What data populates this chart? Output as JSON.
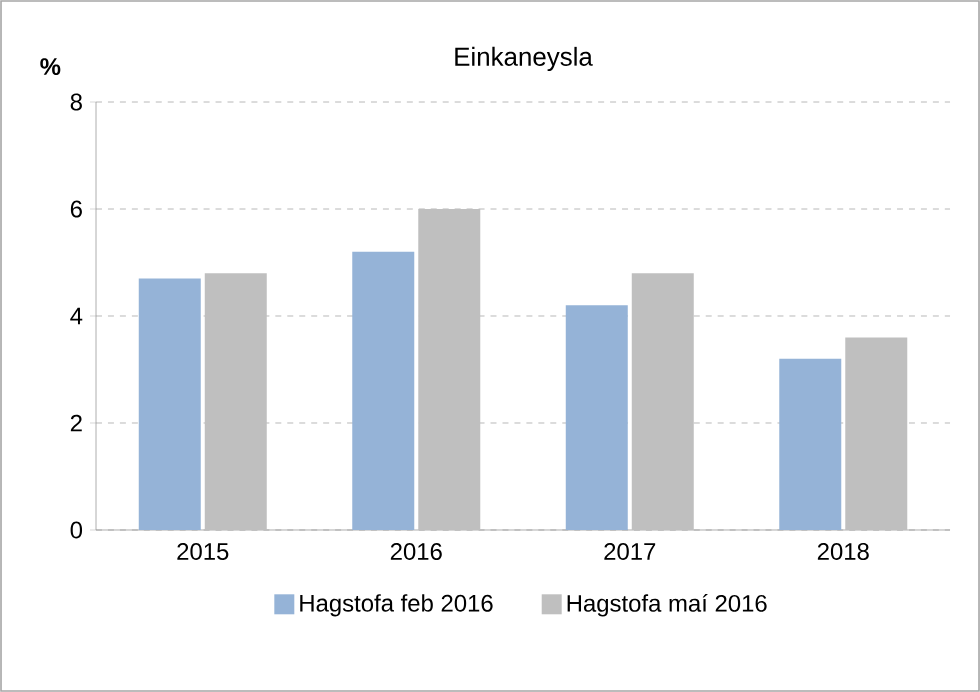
{
  "chart_data": {
    "type": "bar",
    "title": "Einkaneysla",
    "ylabel": "%",
    "categories": [
      "2015",
      "2016",
      "2017",
      "2018"
    ],
    "series": [
      {
        "name": "Hagstofa feb 2016",
        "color": "#95b3d7",
        "values": [
          4.7,
          5.2,
          4.2,
          3.2
        ]
      },
      {
        "name": "Hagstofa maí 2016",
        "color": "#bfbfbf",
        "values": [
          4.8,
          6.0,
          4.8,
          3.6
        ]
      }
    ],
    "ylim": [
      0,
      8
    ],
    "yticks": [
      0,
      2,
      4,
      6,
      8
    ],
    "grid": "y",
    "legend": "bottom"
  }
}
